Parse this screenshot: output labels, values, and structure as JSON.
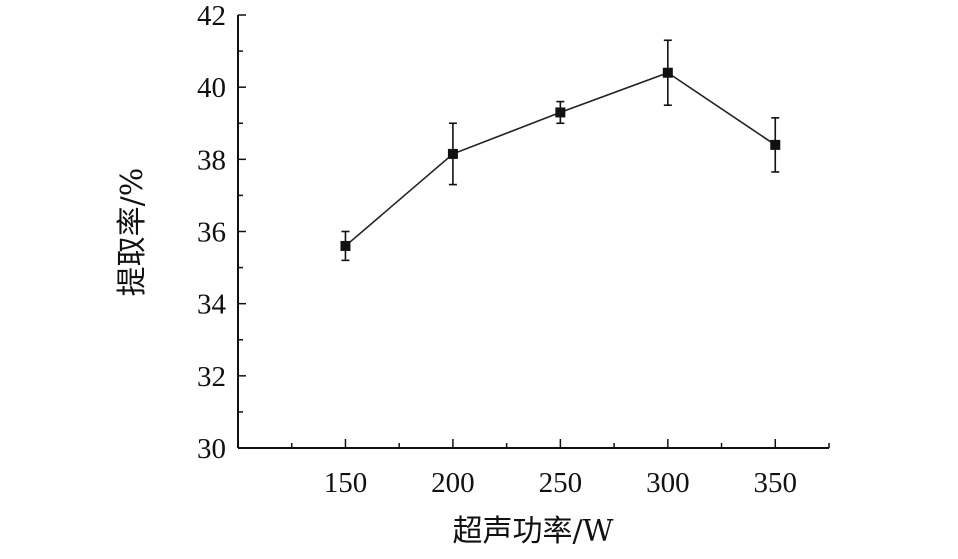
{
  "chart_data": {
    "type": "line",
    "title": "",
    "xlabel": "超声功率/W",
    "ylabel": "提取率/%",
    "x": [
      150,
      200,
      250,
      300,
      350
    ],
    "y": [
      35.6,
      38.15,
      39.3,
      40.4,
      38.4
    ],
    "error": [
      0.4,
      0.85,
      0.3,
      0.9,
      0.75
    ],
    "xlim": [
      100,
      375
    ],
    "ylim": [
      30,
      42
    ],
    "xticks": [
      "150",
      "200",
      "250",
      "300",
      "350"
    ],
    "yticks": [
      "30",
      "32",
      "34",
      "36",
      "38",
      "40",
      "42"
    ],
    "marker": "square",
    "grid": false,
    "line_color": "#222222"
  }
}
